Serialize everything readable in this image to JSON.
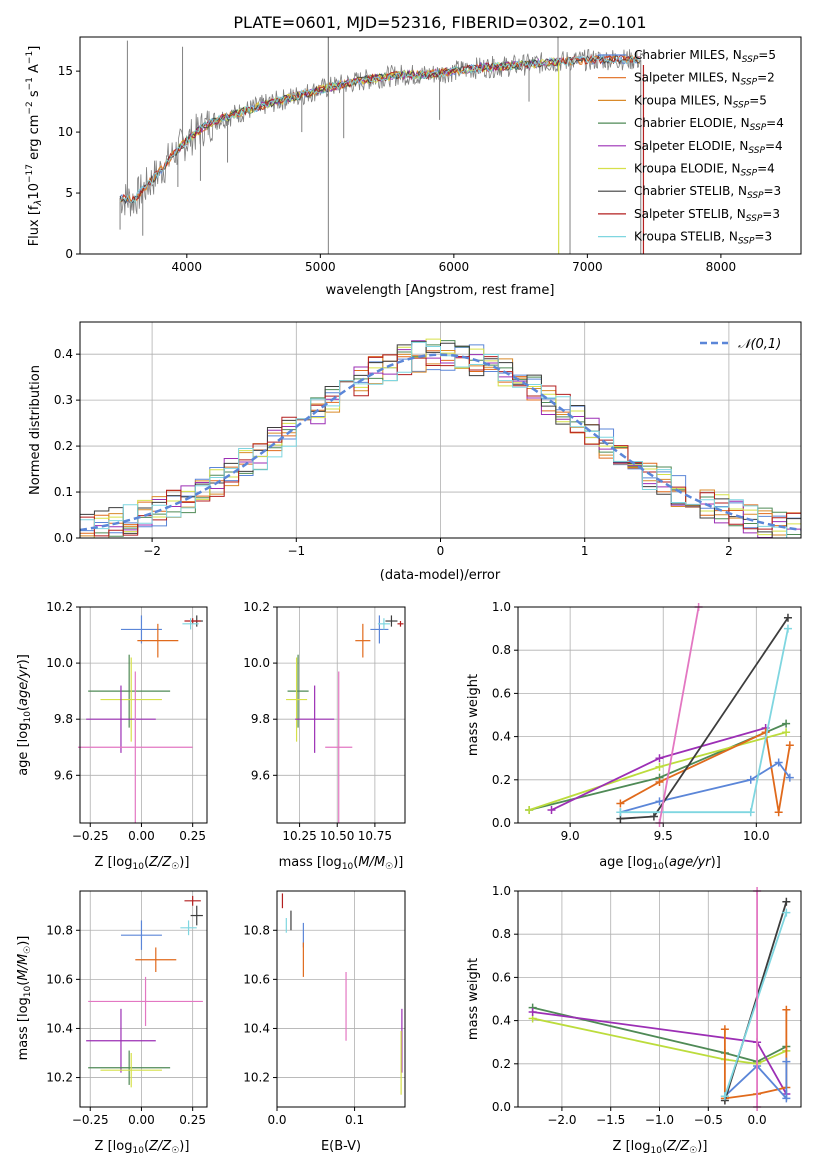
{
  "figure": {
    "title": "PLATE=0601, MJD=52316, FIBERID=0302, z=0.101"
  },
  "colors": {
    "chabrier_miles": "#5b86d8",
    "salpeter_miles": "#e06a1c",
    "kroupa_miles": "#d98a2a",
    "chabrier_elodie": "#4f8a56",
    "salpeter_elodie": "#9c2fb5",
    "kroupa_elodie": "#d6e04a",
    "chabrier_stelib": "#3d3d3d",
    "salpeter_stelib": "#b31f1f",
    "kroupa_stelib": "#7fd6e0",
    "pink": "#e377c2",
    "lime": "#bcdc3c",
    "data": "#808080",
    "gaussian": "#5b86d8"
  },
  "chart_data": [
    {
      "id": "spectrum",
      "type": "line",
      "xlabel": "wavelength [Angstrom, rest frame]",
      "ylabel": "Flux [f_λ10⁻¹⁷ erg cm⁻² s⁻¹ A⁻¹]",
      "xlim": [
        3200,
        8600
      ],
      "ylim": [
        0,
        17.8
      ],
      "xticks": [
        "4000",
        "5000",
        "6000",
        "7000",
        "8000"
      ],
      "yticks": [
        "0",
        "5",
        "10",
        "15"
      ],
      "legend_position": "top-right",
      "legend": [
        "Chabrier MILES, N_SSP=5",
        "Salpeter MILES, N_SSP=2",
        "Kroupa MILES, N_SSP=5",
        "Chabrier ELODIE, N_SSP=4",
        "Salpeter ELODIE, N_SSP=4",
        "Kroupa ELODIE, N_SSP=4",
        "Chabrier STELIB, N_SSP=3",
        "Salpeter STELIB, N_SSP=3",
        "Kroupa STELIB, N_SSP=3"
      ],
      "continuum": {
        "x": [
          3500,
          3600,
          3700,
          3800,
          3900,
          4000,
          4100,
          4200,
          4400,
          4600,
          4800,
          5000,
          5200,
          5400,
          5600,
          5800,
          6000,
          6200,
          6400,
          6600,
          6800,
          7000,
          7200,
          7400
        ],
        "y": [
          4.6,
          4.4,
          5.6,
          6.8,
          8.2,
          9.3,
          10.2,
          10.9,
          11.6,
          12.3,
          12.9,
          13.5,
          14.0,
          14.4,
          14.7,
          14.7,
          15.0,
          15.3,
          15.4,
          15.6,
          15.8,
          15.9,
          16.0,
          15.9
        ]
      },
      "data_features": {
        "x": [
          3500,
          3555,
          3670,
          3933,
          3968,
          4102,
          4305,
          4861,
          5060,
          5175,
          5893,
          6300,
          6563,
          6780,
          6870,
          7400
        ],
        "y": [
          2.0,
          17.5,
          1.5,
          5.5,
          17.0,
          6.0,
          7.5,
          10.0,
          17.8,
          9.5,
          11.0,
          16.0,
          12.5,
          17.8,
          0.0,
          0.0
        ]
      }
    },
    {
      "id": "residuals",
      "type": "histogram",
      "xlabel": "(data-model)/error",
      "ylabel": "Normed distribution",
      "xlim": [
        -2.5,
        2.5
      ],
      "ylim": [
        0,
        0.47
      ],
      "xticks": [
        "−2",
        "−1",
        "0",
        "1",
        "2"
      ],
      "yticks": [
        "0.0",
        "0.1",
        "0.2",
        "0.3",
        "0.4"
      ],
      "legend": [
        "𝒩(0,1)"
      ],
      "legend_position": "top-right",
      "bin_width": 0.1
    },
    {
      "id": "age_vs_Z",
      "type": "errorbar",
      "xlabel": "Z [log₁₀(Z/Z☉)]",
      "ylabel": "age  [log₁₀(age/yr)]",
      "xlim": [
        -0.3,
        0.32
      ],
      "ylim": [
        9.43,
        10.2
      ],
      "xticks": [
        "−0.25",
        "0.00",
        "0.25"
      ],
      "yticks": [
        "9.6",
        "9.8",
        "10.0",
        "10.2"
      ],
      "points": [
        {
          "series": "chabrier_miles",
          "x": 0.0,
          "xerr": 0.1,
          "y": 10.12,
          "yerr": 0.05
        },
        {
          "series": "salpeter_miles",
          "x": 0.08,
          "xerr": 0.1,
          "y": 10.08,
          "yerr": 0.06
        },
        {
          "series": "chabrier_elodie",
          "x": -0.06,
          "xerr": 0.2,
          "y": 9.9,
          "yerr": 0.13
        },
        {
          "series": "kroupa_elodie",
          "x": -0.05,
          "xerr": 0.15,
          "y": 9.87,
          "yerr": 0.15
        },
        {
          "series": "salpeter_elodie",
          "x": -0.1,
          "xerr": 0.17,
          "y": 9.8,
          "yerr": 0.12
        },
        {
          "series": "pink",
          "x": -0.03,
          "xerr": 0.28,
          "y": 9.7,
          "yerr": 0.27
        },
        {
          "series": "chabrier_stelib",
          "x": 0.27,
          "xerr": 0.03,
          "y": 10.15,
          "yerr": 0.02
        },
        {
          "series": "salpeter_stelib",
          "x": 0.25,
          "xerr": 0.04,
          "y": 10.15,
          "yerr": 0.01
        },
        {
          "series": "kroupa_stelib",
          "x": 0.24,
          "xerr": 0.04,
          "y": 10.14,
          "yerr": 0.02
        }
      ]
    },
    {
      "id": "age_vs_mass",
      "type": "errorbar",
      "xlabel": "mass [log₁₀(M/M☉)]",
      "xlim": [
        10.1,
        10.95
      ],
      "ylim": [
        9.43,
        10.2
      ],
      "xticks": [
        "10.25",
        "10.50",
        "10.75"
      ],
      "yticks": [
        "9.6",
        "9.8",
        "10.0",
        "10.2"
      ],
      "points": [
        {
          "series": "chabrier_miles",
          "x": 10.78,
          "xerr": 0.06,
          "y": 10.12,
          "yerr": 0.05
        },
        {
          "series": "salpeter_miles",
          "x": 10.67,
          "xerr": 0.05,
          "y": 10.08,
          "yerr": 0.06
        },
        {
          "series": "chabrier_elodie",
          "x": 10.24,
          "xerr": 0.07,
          "y": 9.9,
          "yerr": 0.13
        },
        {
          "series": "kroupa_elodie",
          "x": 10.23,
          "xerr": 0.07,
          "y": 9.87,
          "yerr": 0.15
        },
        {
          "series": "salpeter_elodie",
          "x": 10.35,
          "xerr": 0.13,
          "y": 9.8,
          "yerr": 0.12
        },
        {
          "series": "pink",
          "x": 10.51,
          "xerr": 0.09,
          "y": 9.7,
          "yerr": 0.27
        },
        {
          "series": "chabrier_stelib",
          "x": 10.86,
          "xerr": 0.04,
          "y": 10.15,
          "yerr": 0.02
        },
        {
          "series": "salpeter_stelib",
          "x": 10.92,
          "xerr": 0.02,
          "y": 10.14,
          "yerr": 0.01
        },
        {
          "series": "kroupa_stelib",
          "x": 10.81,
          "xerr": 0.04,
          "y": 10.14,
          "yerr": 0.02
        }
      ]
    },
    {
      "id": "weight_vs_age",
      "type": "line",
      "xlabel": "age  [log₁₀(age/yr)]",
      "ylabel": "mass weight",
      "xlim": [
        8.72,
        10.24
      ],
      "ylim": [
        0,
        1
      ],
      "xticks": [
        "9.0",
        "9.5",
        "10.0"
      ],
      "yticks": [
        "0.0",
        "0.2",
        "0.4",
        "0.6",
        "0.8",
        "1.0"
      ],
      "series": [
        {
          "key": "chabrier_elodie",
          "x": [
            8.78,
            9.48,
            10.16
          ],
          "y": [
            0.06,
            0.21,
            0.46
          ]
        },
        {
          "key": "lime",
          "x": [
            8.78,
            9.48,
            10.16
          ],
          "y": [
            0.06,
            0.26,
            0.42
          ]
        },
        {
          "key": "salpeter_elodie",
          "x": [
            8.9,
            9.48,
            10.05
          ],
          "y": [
            0.06,
            0.3,
            0.44
          ]
        },
        {
          "key": "salpeter_miles",
          "x": [
            9.27,
            9.48,
            10.05,
            10.12,
            10.18
          ],
          "y": [
            0.09,
            0.19,
            0.42,
            0.05,
            0.36
          ]
        },
        {
          "key": "chabrier_miles",
          "x": [
            9.27,
            9.48,
            9.97,
            10.12,
            10.18
          ],
          "y": [
            0.05,
            0.1,
            0.2,
            0.28,
            0.21
          ]
        },
        {
          "key": "chabrier_stelib",
          "x": [
            9.27,
            9.45,
            10.17
          ],
          "y": [
            0.02,
            0.03,
            0.95
          ]
        },
        {
          "key": "kroupa_stelib",
          "x": [
            9.27,
            9.97,
            10.17
          ],
          "y": [
            0.05,
            0.05,
            0.9
          ]
        },
        {
          "key": "pink",
          "x": [
            9.48,
            9.69
          ],
          "y": [
            0.0,
            1.0
          ]
        }
      ]
    },
    {
      "id": "mass_vs_Z",
      "type": "errorbar",
      "xlabel": "Z [log₁₀(Z/Z☉)]",
      "ylabel": "mass [log₁₀(M/M☉)]",
      "xlim": [
        -0.3,
        0.32
      ],
      "ylim": [
        10.08,
        10.96
      ],
      "xticks": [
        "−0.25",
        "0.00",
        "0.25"
      ],
      "yticks": [
        "10.2",
        "10.4",
        "10.6",
        "10.8"
      ],
      "points": [
        {
          "series": "chabrier_miles",
          "x": 0.0,
          "xerr": 0.1,
          "y": 10.78,
          "yerr": 0.06
        },
        {
          "series": "salpeter_miles",
          "x": 0.07,
          "xerr": 0.1,
          "y": 10.68,
          "yerr": 0.05
        },
        {
          "series": "pink",
          "x": 0.02,
          "xerr": 0.28,
          "y": 10.51,
          "yerr": 0.1
        },
        {
          "series": "salpeter_elodie",
          "x": -0.1,
          "xerr": 0.17,
          "y": 10.35,
          "yerr": 0.13
        },
        {
          "series": "chabrier_elodie",
          "x": -0.06,
          "xerr": 0.2,
          "y": 10.24,
          "yerr": 0.07
        },
        {
          "series": "kroupa_elodie",
          "x": -0.05,
          "xerr": 0.15,
          "y": 10.23,
          "yerr": 0.07
        },
        {
          "series": "chabrier_stelib",
          "x": 0.27,
          "xerr": 0.03,
          "y": 10.86,
          "yerr": 0.04
        },
        {
          "series": "salpeter_stelib",
          "x": 0.25,
          "xerr": 0.04,
          "y": 10.92,
          "yerr": 0.02
        },
        {
          "series": "kroupa_stelib",
          "x": 0.23,
          "xerr": 0.04,
          "y": 10.81,
          "yerr": 0.03
        }
      ]
    },
    {
      "id": "mass_vs_ebv",
      "type": "errorbar",
      "xlabel": "E(B-V)",
      "xlim": [
        0,
        0.165
      ],
      "ylim": [
        10.08,
        10.96
      ],
      "xticks": [
        "0.0",
        "0.1"
      ],
      "yticks": [
        "10.2",
        "10.4",
        "10.6",
        "10.8"
      ],
      "points": [
        {
          "series": "salpeter_stelib",
          "x": 0.007,
          "xerr": 0,
          "y": 10.92,
          "yerr": 0.03
        },
        {
          "series": "kroupa_stelib",
          "x": 0.012,
          "xerr": 0,
          "y": 10.82,
          "yerr": 0.03
        },
        {
          "series": "chabrier_stelib",
          "x": 0.018,
          "xerr": 0,
          "y": 10.84,
          "yerr": 0.04
        },
        {
          "series": "chabrier_miles",
          "x": 0.034,
          "xerr": 0,
          "y": 10.78,
          "yerr": 0.05
        },
        {
          "series": "salpeter_miles",
          "x": 0.034,
          "xerr": 0,
          "y": 10.68,
          "yerr": 0.07
        },
        {
          "series": "pink",
          "x": 0.089,
          "xerr": 0,
          "y": 10.49,
          "yerr": 0.14
        },
        {
          "series": "salpeter_elodie",
          "x": 0.161,
          "xerr": 0,
          "y": 10.35,
          "yerr": 0.13
        },
        {
          "series": "kroupa_elodie",
          "x": 0.16,
          "xerr": 0,
          "y": 10.26,
          "yerr": 0.13
        }
      ]
    },
    {
      "id": "weight_vs_Z",
      "type": "line",
      "xlabel": "Z [log₁₀(Z/Z☉)]",
      "ylabel": "mass weight",
      "xlim": [
        -2.45,
        0.45
      ],
      "ylim": [
        0,
        1
      ],
      "xticks": [
        "−2.0",
        "−1.5",
        "−1.0",
        "−0.5",
        "0.0"
      ],
      "yticks": [
        "0.0",
        "0.2",
        "0.4",
        "0.6",
        "0.8",
        "1.0"
      ],
      "series": [
        {
          "key": "chabrier_elodie",
          "x": [
            -2.3,
            -0.33,
            0.0,
            0.3
          ],
          "y": [
            0.46,
            0.25,
            0.21,
            0.28
          ]
        },
        {
          "key": "lime",
          "x": [
            -2.3,
            -0.33,
            0.0,
            0.3
          ],
          "y": [
            0.41,
            0.22,
            0.2,
            0.26
          ]
        },
        {
          "key": "salpeter_elodie",
          "x": [
            -2.3,
            0.0,
            0.3
          ],
          "y": [
            0.44,
            0.3,
            0.06
          ]
        },
        {
          "key": "salpeter_miles",
          "x": [
            -0.33,
            -0.33,
            0.0,
            0.3,
            0.3
          ],
          "y": [
            0.36,
            0.04,
            0.06,
            0.09,
            0.45
          ]
        },
        {
          "key": "chabrier_miles",
          "x": [
            -0.33,
            0.0,
            0.3,
            0.3
          ],
          "y": [
            0.05,
            0.19,
            0.04,
            0.21
          ]
        },
        {
          "key": "chabrier_stelib",
          "x": [
            -0.33,
            0.3
          ],
          "y": [
            0.03,
            0.95
          ]
        },
        {
          "key": "kroupa_stelib",
          "x": [
            -0.33,
            0.3
          ],
          "y": [
            0.05,
            0.9
          ]
        },
        {
          "key": "pink",
          "x": [
            0.0,
            0.0
          ],
          "y": [
            0.0,
            1.0
          ]
        }
      ]
    }
  ]
}
